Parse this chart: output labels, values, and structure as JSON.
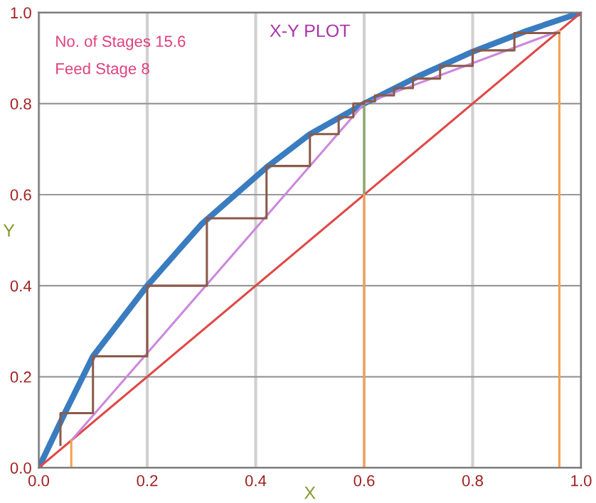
{
  "chart_data": {
    "type": "line",
    "title": "X-Y PLOT",
    "xlabel": "X",
    "ylabel": "Y",
    "annotations": [
      "No. of Stages 15.6",
      "Feed Stage 8"
    ],
    "xlim": [
      0,
      1
    ],
    "ylim": [
      0,
      1
    ],
    "xticks": [
      {
        "value": 0,
        "label": "0.0"
      },
      0.2,
      0.4,
      0.6,
      0.8,
      {
        "value": 1,
        "label": "1.0"
      }
    ],
    "yticks": [
      {
        "value": 0,
        "label": "0.0"
      },
      0.2,
      0.4,
      0.6,
      0.8,
      {
        "value": 1,
        "label": "1.0"
      }
    ],
    "grid": true,
    "marker": "none",
    "line_style": "solid",
    "series": [
      {
        "color": "#3a7cc0",
        "x": [
          0,
          0.05,
          0.1,
          0.2,
          0.3,
          0.42,
          0.5,
          0.6,
          0.7,
          0.8,
          0.9,
          1.0
        ],
        "values": [
          0,
          0.125,
          0.245,
          0.4,
          0.535,
          0.66,
          0.733,
          0.8,
          0.86,
          0.914,
          0.96,
          1.0
        ]
      },
      {
        "color": "#e04848",
        "x": [
          0,
          1
        ],
        "values": [
          0,
          1
        ]
      },
      {
        "color": "#cc88dd",
        "x": [
          0.06,
          0.6,
          0.96
        ],
        "values": [
          0.06,
          0.8,
          0.96
        ]
      },
      {
        "color": "#88aa66",
        "x": [
          0.6,
          0.6
        ],
        "values": [
          0.6,
          0.8
        ]
      },
      {
        "color": "#f5a050",
        "x": [
          0.06,
          0.06
        ],
        "values": [
          0,
          0.06
        ]
      },
      {
        "color": "#f5a050",
        "x": [
          0.6,
          0.6
        ],
        "values": [
          0,
          0.6
        ]
      },
      {
        "color": "#f5a050",
        "x": [
          0.96,
          0.96
        ],
        "values": [
          0,
          0.96
        ]
      },
      {
        "color": "#8b5a4a",
        "x": [
          0.96,
          0.877,
          0.877,
          0.8,
          0.8,
          0.74,
          0.74,
          0.69,
          0.69,
          0.655,
          0.655,
          0.62,
          0.62,
          0.6,
          0.6,
          0.58,
          0.58,
          0.553,
          0.553,
          0.5,
          0.5,
          0.42,
          0.42,
          0.31,
          0.31,
          0.2,
          0.2,
          0.1,
          0.1,
          0.04,
          0.04
        ],
        "values": [
          0.955,
          0.955,
          0.917,
          0.917,
          0.883,
          0.883,
          0.855,
          0.855,
          0.834,
          0.834,
          0.818,
          0.818,
          0.805,
          0.805,
          0.8,
          0.8,
          0.77,
          0.77,
          0.733,
          0.733,
          0.663,
          0.663,
          0.548,
          0.548,
          0.4,
          0.4,
          0.245,
          0.245,
          0.12,
          0.12,
          0.05
        ]
      }
    ]
  }
}
